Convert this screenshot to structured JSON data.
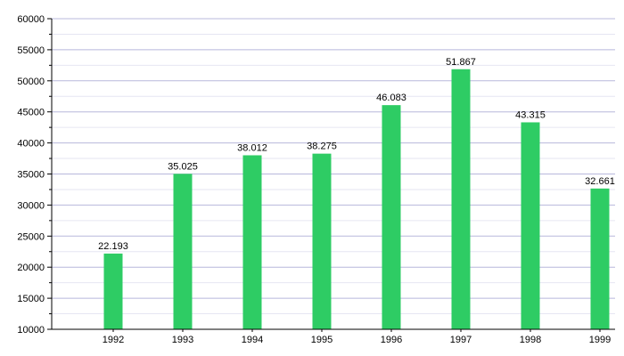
{
  "chart_data": {
    "type": "bar",
    "title": "",
    "xlabel": "",
    "ylabel": "",
    "categories": [
      "1992",
      "1993",
      "1994",
      "1995",
      "1996",
      "1997",
      "1998",
      "1999"
    ],
    "values": [
      22193,
      35025,
      38012,
      38275,
      46083,
      51867,
      43315,
      32661
    ],
    "value_labels": [
      "22.193",
      "35.025",
      "38.012",
      "38.275",
      "46.083",
      "51.867",
      "43.315",
      "32.661"
    ],
    "ylim": [
      10000,
      60000
    ],
    "y_ticks": [
      10000,
      15000,
      20000,
      25000,
      30000,
      35000,
      40000,
      45000,
      50000,
      55000,
      60000
    ],
    "grid": true,
    "legend": "none",
    "colors": {
      "bar": "#2ecc64",
      "grid": "#b8b8dc",
      "axis": "#000000"
    }
  }
}
